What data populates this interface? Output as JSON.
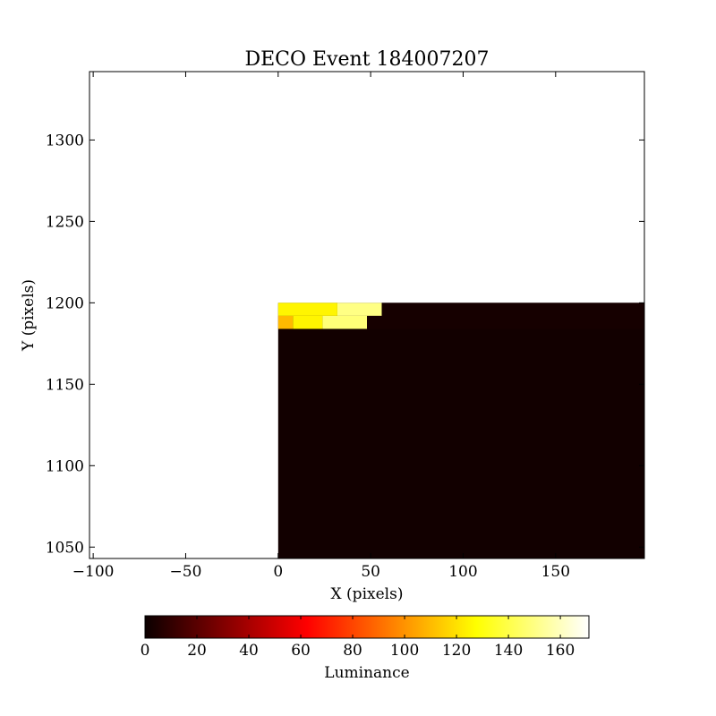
{
  "chart_data": {
    "type": "heatmap",
    "title": "DECO Event 184007207",
    "xlabel": "X (pixels)",
    "ylabel": "Y (pixels)",
    "xlim": [
      -102,
      198
    ],
    "ylim": [
      1043,
      1342
    ],
    "xticks": [
      -100,
      -50,
      0,
      50,
      100,
      150
    ],
    "xtick_labels": [
      "−100",
      "−50",
      "0",
      "50",
      "100",
      "150"
    ],
    "yticks": [
      1050,
      1100,
      1150,
      1200,
      1250,
      1300
    ],
    "ytick_labels": [
      "1050",
      "1100",
      "1150",
      "1200",
      "1250",
      "1300"
    ],
    "grid": false,
    "colormap": "hot",
    "colorbar": {
      "label": "Luminance",
      "range": [
        0,
        171
      ],
      "ticks": [
        0,
        20,
        40,
        60,
        80,
        100,
        120,
        140,
        160
      ],
      "tick_labels": [
        "0",
        "20",
        "40",
        "60",
        "80",
        "100",
        "120",
        "140",
        "160"
      ],
      "orientation": "horizontal",
      "placement": "bottom"
    },
    "image_extent": {
      "x": [
        0,
        198
      ],
      "y": [
        1043,
        1200
      ]
    },
    "background_luminance": 2,
    "cells": [
      {
        "x": [
          0,
          32
        ],
        "y": [
          1192,
          1200
        ],
        "value": 125
      },
      {
        "x": [
          32,
          56
        ],
        "y": [
          1192,
          1200
        ],
        "value": 150
      },
      {
        "x": [
          0,
          8
        ],
        "y": [
          1184,
          1192
        ],
        "value": 110
      },
      {
        "x": [
          8,
          24
        ],
        "y": [
          1184,
          1192
        ],
        "value": 125
      },
      {
        "x": [
          24,
          48
        ],
        "y": [
          1184,
          1192
        ],
        "value": 148
      },
      {
        "x": [
          56,
          198
        ],
        "y": [
          1192,
          1200
        ],
        "value": 3
      },
      {
        "x": [
          48,
          198
        ],
        "y": [
          1184,
          1192
        ],
        "value": 3
      }
    ]
  }
}
